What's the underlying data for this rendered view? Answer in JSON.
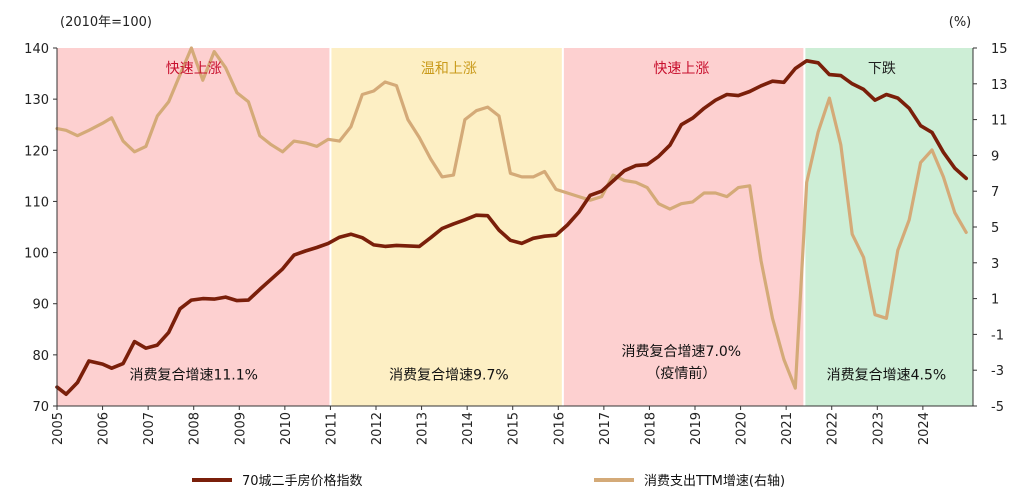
{
  "chart_data": {
    "type": "line",
    "left_axis_unit": "(2010年=100)",
    "right_axis_unit": "(%)",
    "xlim": [
      2005.0,
      2025.1
    ],
    "left_ylim": [
      70,
      140
    ],
    "right_ylim": [
      -5,
      15
    ],
    "x_ticks": [
      "2005",
      "2006",
      "2007",
      "2008",
      "2009",
      "2010",
      "2011",
      "2012",
      "2013",
      "2014",
      "2015",
      "2016",
      "2017",
      "2018",
      "2019",
      "2020",
      "2021",
      "2022",
      "2023",
      "2024"
    ],
    "left_ticks": [
      "70",
      "80",
      "90",
      "100",
      "110",
      "120",
      "130",
      "140"
    ],
    "right_ticks": [
      "-5",
      "-3",
      "-1",
      "1",
      "3",
      "5",
      "7",
      "9",
      "11",
      "13",
      "15"
    ],
    "periods": [
      {
        "label": "快速上涨",
        "start": 2005.0,
        "end": 2011.0,
        "fill": "#fdd0d0",
        "label_color": "#c8102e",
        "label_x": 2008.0,
        "cagr": "消费复合增速11.1%",
        "cagr_x": 2008.0,
        "cagr_y": 75.2
      },
      {
        "label": "温和上涨",
        "start": 2011.0,
        "end": 2016.1,
        "fill": "#fdefc4",
        "label_color": "#c99a1a",
        "label_x": 2013.6,
        "cagr": "消费复合增速9.7%",
        "cagr_x": 2013.6,
        "cagr_y": 75.2
      },
      {
        "label": "快速上涨",
        "start": 2016.1,
        "end": 2021.4,
        "fill": "#fdd0d0",
        "label_color": "#c8102e",
        "label_x": 2018.7,
        "cagr": "消费复合增速7.0%",
        "cagr_note": "（疫情前）",
        "cagr_x": 2018.7,
        "cagr_y": 79.8
      },
      {
        "label": "下跌",
        "start": 2021.4,
        "end": 2025.1,
        "fill": "#cdeed6",
        "label_color": "#1f1f1f",
        "label_x": 2023.1,
        "cagr": "消费复合增速4.5%",
        "cagr_x": 2023.2,
        "cagr_y": 75.2
      }
    ],
    "series": [
      {
        "name": "70城二手房价格指数",
        "axis": "left",
        "color": "#7a1f0a",
        "x": [
          2005.0,
          2005.2,
          2005.45,
          2005.7,
          2006.0,
          2006.2,
          2006.45,
          2006.7,
          2006.95,
          2007.2,
          2007.45,
          2007.7,
          2007.95,
          2008.2,
          2008.45,
          2008.7,
          2008.95,
          2009.2,
          2009.45,
          2009.7,
          2009.95,
          2010.2,
          2010.45,
          2010.7,
          2010.95,
          2011.2,
          2011.45,
          2011.7,
          2011.95,
          2012.2,
          2012.45,
          2012.7,
          2012.95,
          2013.2,
          2013.45,
          2013.7,
          2013.95,
          2014.2,
          2014.45,
          2014.7,
          2014.95,
          2015.2,
          2015.45,
          2015.7,
          2015.95,
          2016.2,
          2016.45,
          2016.7,
          2016.95,
          2017.2,
          2017.45,
          2017.7,
          2017.95,
          2018.2,
          2018.45,
          2018.7,
          2018.95,
          2019.2,
          2019.45,
          2019.7,
          2019.95,
          2020.2,
          2020.45,
          2020.7,
          2020.95,
          2021.2,
          2021.45,
          2021.7,
          2021.95,
          2022.2,
          2022.45,
          2022.7,
          2022.95,
          2023.2,
          2023.45,
          2023.7,
          2023.95,
          2024.2,
          2024.45,
          2024.7,
          2024.95
        ],
        "values": [
          73.7,
          72.3,
          74.6,
          78.8,
          78.2,
          77.4,
          78.3,
          82.6,
          81.3,
          81.9,
          84.4,
          89.0,
          90.7,
          91.0,
          90.9,
          91.3,
          90.6,
          90.7,
          92.8,
          94.8,
          96.8,
          99.5,
          100.3,
          101.0,
          101.8,
          103.0,
          103.6,
          102.9,
          101.5,
          101.2,
          101.4,
          101.3,
          101.2,
          102.9,
          104.7,
          105.6,
          106.4,
          107.3,
          107.2,
          104.4,
          102.4,
          101.8,
          102.8,
          103.2,
          103.4,
          105.4,
          107.9,
          111.2,
          112.0,
          114.0,
          116.0,
          117.0,
          117.2,
          118.8,
          121.0,
          125.0,
          126.3,
          128.2,
          129.8,
          130.9,
          130.7,
          131.5,
          132.6,
          133.5,
          133.3,
          136.0,
          137.5,
          137.1,
          134.8,
          134.6,
          133.0,
          131.9,
          129.8,
          130.9,
          130.2,
          128.2,
          124.8,
          123.5,
          119.6,
          116.5,
          114.5
        ]
      },
      {
        "name": "消费支出TTM增速(右轴)",
        "axis": "right",
        "color": "#d4aa78",
        "x": [
          2005.0,
          2005.2,
          2005.45,
          2005.7,
          2006.0,
          2006.2,
          2006.45,
          2006.7,
          2006.95,
          2007.2,
          2007.45,
          2007.7,
          2007.95,
          2008.2,
          2008.45,
          2008.7,
          2008.95,
          2009.2,
          2009.45,
          2009.7,
          2009.95,
          2010.2,
          2010.45,
          2010.7,
          2010.95,
          2011.2,
          2011.45,
          2011.7,
          2011.95,
          2012.2,
          2012.45,
          2012.7,
          2012.95,
          2013.2,
          2013.45,
          2013.7,
          2013.95,
          2014.2,
          2014.45,
          2014.7,
          2014.95,
          2015.2,
          2015.45,
          2015.7,
          2015.95,
          2016.2,
          2016.45,
          2016.7,
          2016.95,
          2017.2,
          2017.45,
          2017.7,
          2017.95,
          2018.2,
          2018.45,
          2018.7,
          2018.95,
          2019.2,
          2019.45,
          2019.7,
          2019.95,
          2020.2,
          2020.45,
          2020.7,
          2020.95,
          2021.2,
          2021.45,
          2021.7,
          2021.95,
          2022.2,
          2022.45,
          2022.7,
          2022.95,
          2023.2,
          2023.45,
          2023.7,
          2023.95,
          2024.2,
          2024.45,
          2024.7,
          2024.95
        ],
        "values": [
          10.5,
          10.4,
          10.1,
          10.4,
          10.8,
          11.1,
          9.8,
          9.2,
          9.5,
          11.2,
          12.0,
          13.5,
          15.0,
          13.2,
          14.8,
          13.9,
          12.5,
          12.0,
          10.1,
          9.6,
          9.2,
          9.8,
          9.7,
          9.5,
          9.9,
          9.8,
          10.6,
          12.4,
          12.6,
          13.1,
          12.9,
          11.0,
          10.0,
          8.8,
          7.8,
          7.9,
          11.0,
          11.5,
          11.7,
          11.2,
          8.0,
          7.8,
          7.8,
          8.1,
          7.1,
          6.9,
          6.7,
          6.5,
          6.7,
          7.9,
          7.6,
          7.5,
          7.2,
          6.3,
          6.0,
          6.3,
          6.4,
          6.9,
          6.9,
          6.7,
          7.2,
          7.3,
          3.1,
          -0.1,
          -2.4,
          -4.0,
          7.5,
          10.3,
          12.2,
          9.6,
          4.6,
          3.3,
          0.1,
          -0.1,
          3.7,
          5.4,
          8.6,
          9.3,
          7.8,
          5.8,
          4.7
        ]
      }
    ],
    "legend": {
      "placement": "bottom",
      "items": [
        "70城二手房价格指数",
        "消费支出TTM增速(右轴)"
      ]
    }
  }
}
